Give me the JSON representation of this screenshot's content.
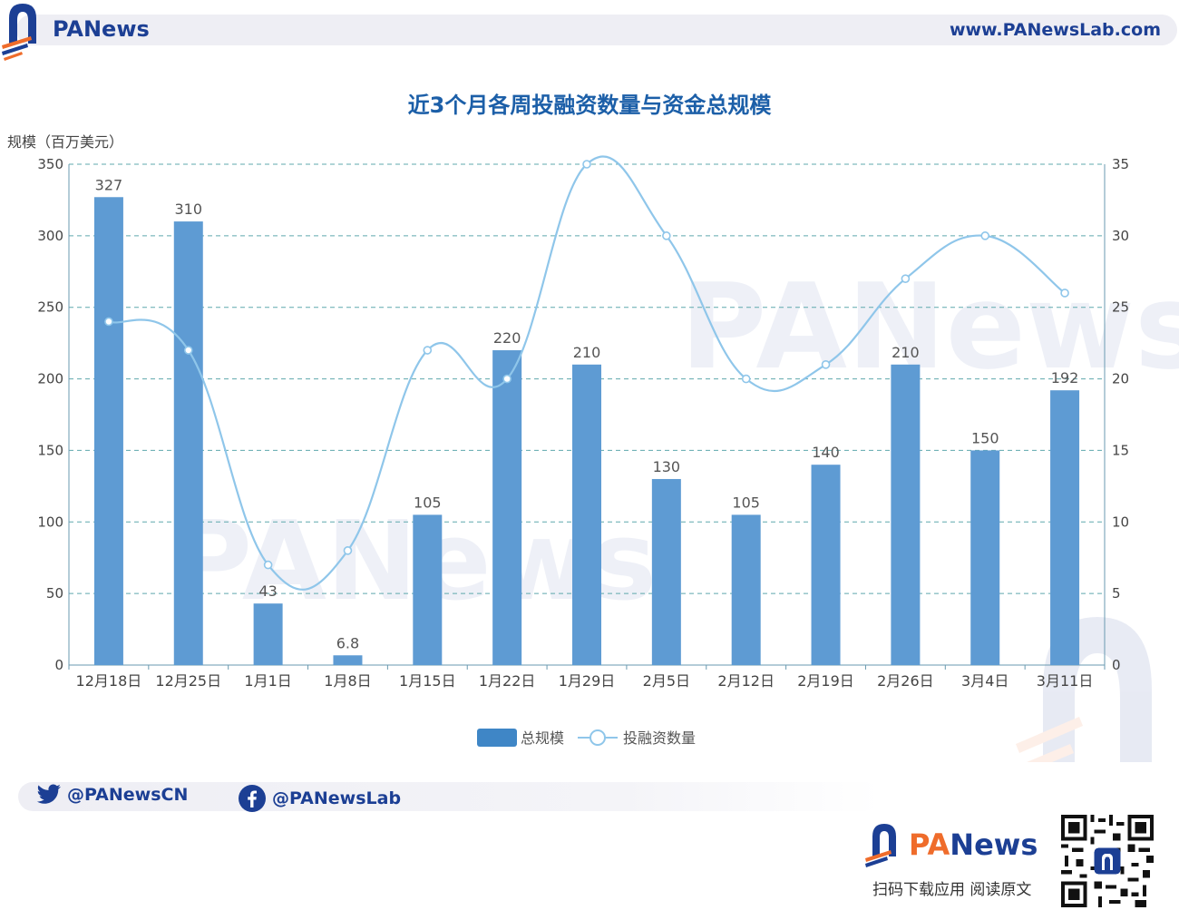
{
  "header": {
    "brand_main": "PA",
    "brand_rest": "News",
    "site_url": "www.PANewsLab.com"
  },
  "colors": {
    "bar": "#5e9bd3",
    "line": "#8fc6ea",
    "grid": "#5fa8ad",
    "title": "#1c5fa8",
    "brand_blue": "#1c3f94",
    "brand_orange": "#ef6c2b"
  },
  "chart_data": {
    "type": "bar",
    "title": "近3个月各周投融资数量与资金总规模",
    "ylabel_left": "规模（百万美元）",
    "ylabel_right": "",
    "categories": [
      "12月18日",
      "12月25日",
      "1月1日",
      "1月8日",
      "1月15日",
      "1月22日",
      "1月29日",
      "2月5日",
      "2月12日",
      "2月19日",
      "2月26日",
      "3月4日",
      "3月11日"
    ],
    "series": [
      {
        "name": "总规模",
        "type": "bar",
        "axis": "left",
        "values": [
          327,
          310,
          43,
          6.8,
          105,
          220,
          210,
          130,
          105,
          140,
          210,
          150,
          192
        ],
        "labels": [
          "327",
          "310",
          "43",
          "6.8",
          "105",
          "220",
          "210",
          "130",
          "105",
          "140",
          "210",
          "150",
          "192"
        ]
      },
      {
        "name": "投融资数量",
        "type": "line",
        "axis": "right",
        "values": [
          24,
          22,
          7,
          8,
          22,
          20,
          35,
          30,
          20,
          21,
          27,
          30,
          26
        ]
      }
    ],
    "ylim_left": [
      0,
      350
    ],
    "ylim_right": [
      0,
      35
    ],
    "yticks_left": [
      0,
      50,
      100,
      150,
      200,
      250,
      300,
      350
    ],
    "yticks_right": [
      0,
      5,
      10,
      15,
      20,
      25,
      30,
      35
    ],
    "grid": true,
    "legend_position": "bottom-center"
  },
  "footer": {
    "twitter_handle": "@PANewsCN",
    "facebook_handle": "@PANewsLab",
    "logo_main": "PA",
    "logo_rest": "News",
    "caption": "扫码下载应用  阅读原文"
  }
}
